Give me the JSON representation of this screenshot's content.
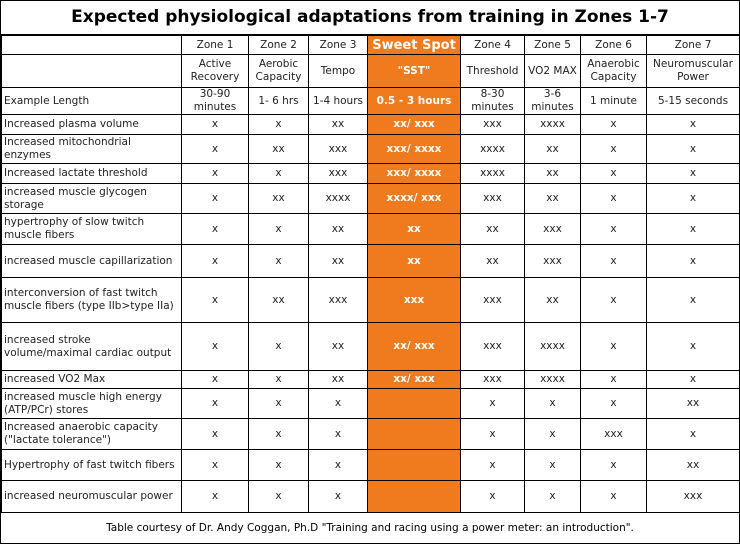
{
  "title": "Expected physiological adaptations from training in Zones 1-7",
  "columns": [
    "Zone 1",
    "Zone 2",
    "Zone 3",
    "Sweet Spot",
    "Zone 4",
    "Zone 5",
    "Zone 6",
    "Zone 7"
  ],
  "subtitles": [
    "Active Recovery",
    "Aerobic Capacity",
    "Tempo",
    "\"SST\"",
    "Threshold",
    "VO2 MAX",
    "Anaerobic Capacity",
    "Neuromuscular Power"
  ],
  "example_length": {
    "label": "Example Length",
    "values": [
      "30-90 minutes",
      "1- 6 hrs",
      "1-4 hours",
      "0.5 - 3 hours",
      "8-30 minutes",
      "3-6 minutes",
      "1 minute",
      "5-15 seconds"
    ]
  },
  "rows": [
    {
      "label": "Increased plasma volume",
      "values": [
        "x",
        "x",
        "xx",
        "xx/ xxx",
        "xxx",
        "xxxx",
        "x",
        "x"
      ]
    },
    {
      "label": "Increased mitochondrial enzymes",
      "values": [
        "x",
        "xx",
        "xxx",
        "xxx/ xxxx",
        "xxxx",
        "xx",
        "x",
        "x"
      ]
    },
    {
      "label": "Increased lactate threshold",
      "values": [
        "x",
        "x",
        "xxx",
        "xxx/ xxxx",
        "xxxx",
        "xx",
        "x",
        "x"
      ]
    },
    {
      "label": "increased muscle glycogen storage",
      "values": [
        "x",
        "xx",
        "xxxx",
        "xxxx/ xxx",
        "xxx",
        "xx",
        "x",
        "x"
      ]
    },
    {
      "label": "hypertrophy of slow twitch muscle fibers",
      "values": [
        "x",
        "x",
        "xx",
        "xx",
        "xx",
        "xxx",
        "x",
        "x"
      ]
    },
    {
      "label": "increased muscle capillarization",
      "values": [
        "x",
        "x",
        "xx",
        "xx",
        "xx",
        "xxx",
        "x",
        "x"
      ]
    },
    {
      "label": "interconversion of fast twitch muscle fibers (type IIb>type IIa)",
      "values": [
        "x",
        "xx",
        "xxx",
        "xxx",
        "xxx",
        "xx",
        "x",
        "x"
      ]
    },
    {
      "label": "increased stroke volume/maximal cardiac output",
      "values": [
        "x",
        "x",
        "xx",
        "xx/ xxx",
        "xxx",
        "xxxx",
        "x",
        "x"
      ]
    },
    {
      "label": "increased VO2 Max",
      "values": [
        "x",
        "x",
        "xx",
        "xx/ xxx",
        "xxx",
        "xxxx",
        "x",
        "x"
      ]
    },
    {
      "label": "increased muscle high energy (ATP/PCr) stores",
      "values": [
        "x",
        "x",
        "x",
        null,
        "x",
        "x",
        "x",
        "xx"
      ]
    },
    {
      "label": "Increased anaerobic capacity (\"lactate tolerance\")",
      "values": [
        "x",
        "x",
        "x",
        null,
        "x",
        "x",
        "xxx",
        "x"
      ]
    },
    {
      "label": "Hypertrophy of fast twitch fibers",
      "values": [
        "x",
        "x",
        "x",
        null,
        "x",
        "x",
        "x",
        "xx"
      ]
    },
    {
      "label": "increased neuromuscular power",
      "values": [
        "x",
        "x",
        "x",
        null,
        "x",
        "x",
        "x",
        "xxx"
      ]
    }
  ],
  "footer": "Table courtesy of Dr. Andy Coggan, Ph.D \"Training and racing using a power meter: an introduction\"."
}
